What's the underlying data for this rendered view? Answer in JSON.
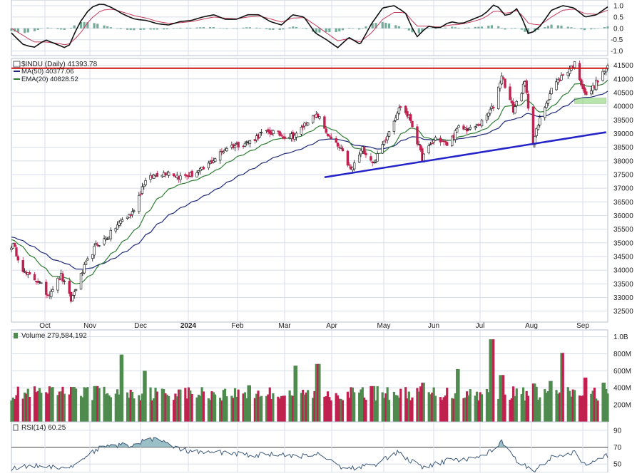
{
  "chart_data": {
    "type": "line",
    "symbol_label": "$INDU (Daily) 41393.78",
    "legend": [
      {
        "name": "MA(50) 40377.06",
        "color": "#1f2a7a"
      },
      {
        "name": "EMA(20) 40828.52",
        "color": "#2e7d32"
      }
    ],
    "x_tick_labels": [
      "Oct",
      "Nov",
      "Dec",
      "2024",
      "Feb",
      "Mar",
      "Apr",
      "May",
      "Jun",
      "Jul",
      "Aug",
      "Sep"
    ],
    "price_axis_labels": [
      "32500",
      "33000",
      "33500",
      "34000",
      "34500",
      "35000",
      "35500",
      "36000",
      "36500",
      "37000",
      "37500",
      "38000",
      "38500",
      "39000",
      "39500",
      "40000",
      "40500",
      "41000",
      "41500"
    ],
    "price_range": [
      32100,
      41750
    ],
    "resistance_level": 41393,
    "trendline": {
      "start": [
        "2024-04-01",
        37400
      ],
      "end": [
        "2024-09-18",
        39050
      ]
    },
    "support_zone": {
      "from": "2024-08-30",
      "to": "2024-09-18",
      "low": 40100,
      "high": 40300
    },
    "price_waypoints": [
      [
        "2023-09-26",
        34900
      ],
      [
        "2023-10-03",
        33900
      ],
      [
        "2023-10-11",
        33600
      ],
      [
        "2023-10-17",
        33100
      ],
      [
        "2023-10-25",
        33800
      ],
      [
        "2023-10-31",
        32900
      ],
      [
        "2023-11-08",
        34100
      ],
      [
        "2023-11-15",
        34900
      ],
      [
        "2023-11-22",
        35200
      ],
      [
        "2023-11-30",
        35800
      ],
      [
        "2023-12-07",
        36100
      ],
      [
        "2023-12-14",
        37200
      ],
      [
        "2023-12-21",
        37500
      ],
      [
        "2023-12-29",
        37600
      ],
      [
        "2024-01-05",
        37400
      ],
      [
        "2024-01-12",
        37500
      ],
      [
        "2024-01-19",
        37700
      ],
      [
        "2024-01-26",
        38100
      ],
      [
        "2024-02-02",
        38500
      ],
      [
        "2024-02-09",
        38600
      ],
      [
        "2024-02-16",
        38700
      ],
      [
        "2024-02-23",
        39000
      ],
      [
        "2024-03-01",
        39050
      ],
      [
        "2024-03-08",
        38900
      ],
      [
        "2024-03-15",
        38950
      ],
      [
        "2024-03-22",
        39500
      ],
      [
        "2024-03-28",
        39650
      ],
      [
        "2024-04-04",
        38850
      ],
      [
        "2024-04-11",
        38400
      ],
      [
        "2024-04-17",
        37650
      ],
      [
        "2024-04-24",
        38450
      ],
      [
        "2024-05-01",
        37900
      ],
      [
        "2024-05-08",
        38850
      ],
      [
        "2024-05-15",
        39800
      ],
      [
        "2024-05-17",
        40000
      ],
      [
        "2024-05-23",
        39500
      ],
      [
        "2024-05-30",
        38100
      ],
      [
        "2024-06-07",
        38850
      ],
      [
        "2024-06-14",
        38600
      ],
      [
        "2024-06-21",
        39200
      ],
      [
        "2024-06-28",
        39150
      ],
      [
        "2024-07-05",
        39400
      ],
      [
        "2024-07-12",
        40000
      ],
      [
        "2024-07-17",
        41150
      ],
      [
        "2024-07-24",
        39850
      ],
      [
        "2024-07-31",
        40850
      ],
      [
        "2024-08-05",
        38700
      ],
      [
        "2024-08-09",
        39500
      ],
      [
        "2024-08-16",
        40650
      ],
      [
        "2024-08-23",
        41150
      ],
      [
        "2024-08-30",
        41550
      ],
      [
        "2024-09-06",
        40350
      ],
      [
        "2024-09-12",
        40850
      ],
      [
        "2024-09-18",
        41390
      ]
    ],
    "macd_axis_labels": [
      "1.0",
      "0.5",
      "0.0",
      "-0.5",
      "-1.0"
    ],
    "macd_range": [
      -1.2,
      1.25
    ],
    "macd_line": [
      -0.2,
      -0.7,
      -0.85,
      -0.5,
      -0.7,
      -0.9,
      0.2,
      0.9,
      1.1,
      0.9,
      0.6,
      0.4,
      0.35,
      0.2,
      0.15,
      0.3,
      0.35,
      0.5,
      0.6,
      0.4,
      0.4,
      0.6,
      0.6,
      0.3,
      0.15,
      0.6,
      0.5,
      -0.2,
      -0.5,
      -0.85,
      -0.4,
      -0.7,
      0.2,
      0.9,
      1.0,
      0.7,
      -0.4,
      0.1,
      0.0,
      0.3,
      0.2,
      0.4,
      0.6,
      1.1,
      0.5,
      0.9,
      -0.3,
      0.1,
      0.8,
      1.0,
      0.9,
      0.5,
      0.6,
      0.95
    ],
    "macd_signal": [
      0.0,
      -0.3,
      -0.6,
      -0.6,
      -0.65,
      -0.75,
      -0.3,
      0.4,
      0.8,
      0.85,
      0.7,
      0.55,
      0.45,
      0.3,
      0.22,
      0.25,
      0.3,
      0.4,
      0.5,
      0.45,
      0.42,
      0.5,
      0.55,
      0.42,
      0.28,
      0.45,
      0.48,
      0.15,
      -0.2,
      -0.55,
      -0.45,
      -0.6,
      -0.2,
      0.4,
      0.7,
      0.7,
      0.1,
      0.1,
      0.05,
      0.15,
      0.18,
      0.3,
      0.45,
      0.8,
      0.65,
      0.8,
      0.2,
      0.15,
      0.5,
      0.8,
      0.85,
      0.65,
      0.62,
      0.8
    ],
    "volume_axis_labels": [
      "200M",
      "400M",
      "600M",
      "800M",
      "1.0B"
    ],
    "volume_label": "Volume 279,584,192",
    "volume_max": 1000,
    "volume_spikes_m": [
      [
        "2023-11-01",
        410
      ],
      [
        "2023-11-15",
        420
      ],
      [
        "2023-12-01",
        790
      ],
      [
        "2023-12-15",
        600
      ],
      [
        "2024-01-05",
        380
      ],
      [
        "2024-02-16",
        430
      ],
      [
        "2024-03-15",
        660
      ],
      [
        "2024-03-28",
        680
      ],
      [
        "2024-04-30",
        420
      ],
      [
        "2024-05-31",
        460
      ],
      [
        "2024-06-21",
        620
      ],
      [
        "2024-07-11",
        970
      ],
      [
        "2024-07-17",
        550
      ],
      [
        "2024-08-05",
        450
      ],
      [
        "2024-08-16",
        480
      ],
      [
        "2024-08-23",
        810
      ],
      [
        "2024-09-06",
        520
      ],
      [
        "2024-09-16",
        460
      ]
    ],
    "rsi_label": "RSI(14) 60.25",
    "rsi_axis_labels": [
      "90",
      "70",
      "50"
    ],
    "rsi_range": [
      40,
      100
    ],
    "rsi_series": [
      [
        "2023-09-26",
        45
      ],
      [
        "2023-10-10",
        48
      ],
      [
        "2023-10-31",
        46
      ],
      [
        "2023-11-08",
        58
      ],
      [
        "2023-11-16",
        68
      ],
      [
        "2023-11-30",
        73
      ],
      [
        "2023-12-07",
        70
      ],
      [
        "2023-12-14",
        79
      ],
      [
        "2023-12-21",
        80
      ],
      [
        "2024-01-05",
        67
      ],
      [
        "2024-01-19",
        63
      ],
      [
        "2024-02-02",
        64
      ],
      [
        "2024-02-16",
        60
      ],
      [
        "2024-03-01",
        62
      ],
      [
        "2024-03-15",
        58
      ],
      [
        "2024-03-28",
        63
      ],
      [
        "2024-04-11",
        47
      ],
      [
        "2024-04-17",
        45
      ],
      [
        "2024-05-01",
        49
      ],
      [
        "2024-05-15",
        64
      ],
      [
        "2024-05-30",
        45
      ],
      [
        "2024-06-14",
        54
      ],
      [
        "2024-06-28",
        56
      ],
      [
        "2024-07-12",
        66
      ],
      [
        "2024-07-17",
        78
      ],
      [
        "2024-07-24",
        57
      ],
      [
        "2024-08-05",
        42
      ],
      [
        "2024-08-16",
        58
      ],
      [
        "2024-08-30",
        64
      ],
      [
        "2024-09-06",
        47
      ],
      [
        "2024-09-18",
        60
      ]
    ]
  },
  "colors": {
    "up": "#4f8a4f",
    "down": "#c0214f",
    "grid": "#d7dee8",
    "resistance": "#d01414",
    "trendline": "#2323c8",
    "macd_hist": "#5b9e86",
    "rsi_fill": "#7aa9b4",
    "zone": "#7fd16a"
  }
}
